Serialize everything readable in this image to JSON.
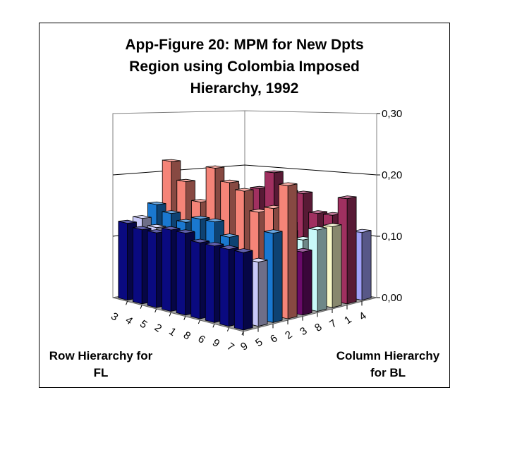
{
  "chart_data": {
    "type": "bar3d",
    "title": [
      "App-Figure 20: MPM for New Dpts",
      "Region using Colombia Imposed",
      "Hierarchy, 1992"
    ],
    "row_axis_title": [
      "Row Hierarchy for",
      "FL"
    ],
    "col_axis_title": [
      "Column Hierarchy",
      "for BL"
    ],
    "zlim": [
      0,
      0.3
    ],
    "z_ticks": [
      "0,00",
      "0,10",
      "0,20",
      "0,30"
    ],
    "z_tick_values": [
      0,
      0.1,
      0.2,
      0.3
    ],
    "rows": [
      "3",
      "4",
      "5",
      "2",
      "1",
      "8",
      "6",
      "9",
      "7"
    ],
    "columns": [
      "9",
      "5",
      "6",
      "2",
      "3",
      "8",
      "7",
      "1",
      "4"
    ],
    "grid": true,
    "series": [
      {
        "name": "9",
        "color": "#0a0a80",
        "values": [
          0.125,
          0.12,
          0.12,
          0.13,
          0.13,
          0.12,
          0.12,
          0.12,
          0.12
        ]
      },
      {
        "name": "5",
        "color": "#c8c8f8",
        "values": [
          0.13,
          0.12,
          0.11,
          0.12,
          0.11,
          0.07,
          0.06,
          0.09,
          0.1
        ]
      },
      {
        "name": "6",
        "color": "#1a78d0",
        "values": [
          0.15,
          0.14,
          0.13,
          0.14,
          0.14,
          0.12,
          0.08,
          0.09,
          0.14
        ]
      },
      {
        "name": "2",
        "color": "#f58478",
        "values": [
          0.22,
          0.19,
          0.16,
          0.22,
          0.2,
          0.19,
          0.16,
          0.17,
          0.21
        ]
      },
      {
        "name": "3",
        "color": "#6a0a6a",
        "values": [
          0.1,
          0.12,
          0.12,
          0.14,
          0.14,
          0.13,
          0.12,
          0.14,
          0.1
        ]
      },
      {
        "name": "8",
        "color": "#c8f8f8",
        "values": [
          0.1,
          0.1,
          0.11,
          0.1,
          0.1,
          0.11,
          0.1,
          0.11,
          0.13
        ]
      },
      {
        "name": "7",
        "color": "#f8f8c8",
        "values": [
          0.1,
          0.1,
          0.11,
          0.11,
          0.11,
          0.11,
          0.1,
          0.12,
          0.13
        ]
      },
      {
        "name": "1",
        "color": "#a03060",
        "values": [
          0.17,
          0.16,
          0.17,
          0.2,
          0.17,
          0.17,
          0.14,
          0.14,
          0.17
        ]
      },
      {
        "name": "4",
        "color": "#a0a0f8",
        "values": [
          0.05,
          0.06,
          0.06,
          0.07,
          0.07,
          0.08,
          0.08,
          0.09,
          0.11
        ]
      }
    ]
  }
}
